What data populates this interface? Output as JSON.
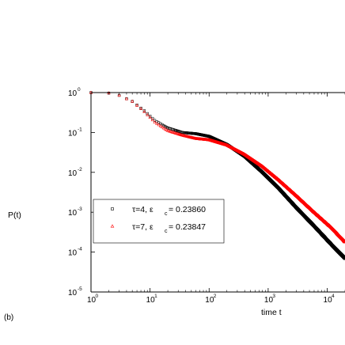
{
  "chart_data": {
    "type": "scatter",
    "panel_label": "(b)",
    "xlabel": "time t",
    "ylabel": "P(t)",
    "xscale": "log",
    "yscale": "log",
    "xlim": [
      1,
      20000
    ],
    "ylim": [
      1e-05,
      1
    ],
    "x_ticks": [
      {
        "value": 1,
        "base": "10",
        "exp": "0"
      },
      {
        "value": 10,
        "base": "10",
        "exp": "1"
      },
      {
        "value": 100,
        "base": "10",
        "exp": "2"
      },
      {
        "value": 1000,
        "base": "10",
        "exp": "3"
      },
      {
        "value": 10000,
        "base": "10",
        "exp": "4"
      }
    ],
    "y_ticks": [
      {
        "value": 1,
        "base": "10",
        "exp": "0"
      },
      {
        "value": 0.1,
        "base": "10",
        "exp": "-1"
      },
      {
        "value": 0.01,
        "base": "10",
        "exp": "-2"
      },
      {
        "value": 0.001,
        "base": "10",
        "exp": "-3"
      },
      {
        "value": 0.0001,
        "base": "10",
        "exp": "-4"
      },
      {
        "value": 1e-05,
        "base": "10",
        "exp": "-5"
      }
    ],
    "legend_position": "center-left",
    "series": [
      {
        "legend_prefix": "τ=4, ε",
        "legend_sub": "c",
        "legend_suffix": "= 0.23860",
        "marker": "square",
        "color": "#000000",
        "curve": [
          [
            1,
            1.0
          ],
          [
            2,
            0.97
          ],
          [
            3,
            0.85
          ],
          [
            5,
            0.6
          ],
          [
            8,
            0.35
          ],
          [
            12,
            0.2
          ],
          [
            20,
            0.13
          ],
          [
            35,
            0.1
          ],
          [
            60,
            0.093
          ],
          [
            100,
            0.08
          ],
          [
            200,
            0.05
          ],
          [
            400,
            0.025
          ],
          [
            800,
            0.01
          ],
          [
            1500,
            0.004
          ],
          [
            3000,
            0.0013
          ],
          [
            6000,
            0.00045
          ],
          [
            12000,
            0.00015
          ],
          [
            20000,
            7e-05
          ]
        ]
      },
      {
        "legend_prefix": "τ=7, ε",
        "legend_sub": "c",
        "legend_suffix": "= 0.23847",
        "marker": "triangle",
        "color": "#ff0000",
        "curve": [
          [
            1,
            1.0
          ],
          [
            2,
            0.97
          ],
          [
            3,
            0.85
          ],
          [
            5,
            0.6
          ],
          [
            8,
            0.33
          ],
          [
            12,
            0.18
          ],
          [
            20,
            0.11
          ],
          [
            35,
            0.085
          ],
          [
            60,
            0.07
          ],
          [
            100,
            0.065
          ],
          [
            200,
            0.048
          ],
          [
            400,
            0.028
          ],
          [
            800,
            0.014
          ],
          [
            1500,
            0.0065
          ],
          [
            3000,
            0.0026
          ],
          [
            6000,
            0.001
          ],
          [
            12000,
            0.0004
          ],
          [
            20000,
            0.00018
          ]
        ]
      }
    ]
  }
}
